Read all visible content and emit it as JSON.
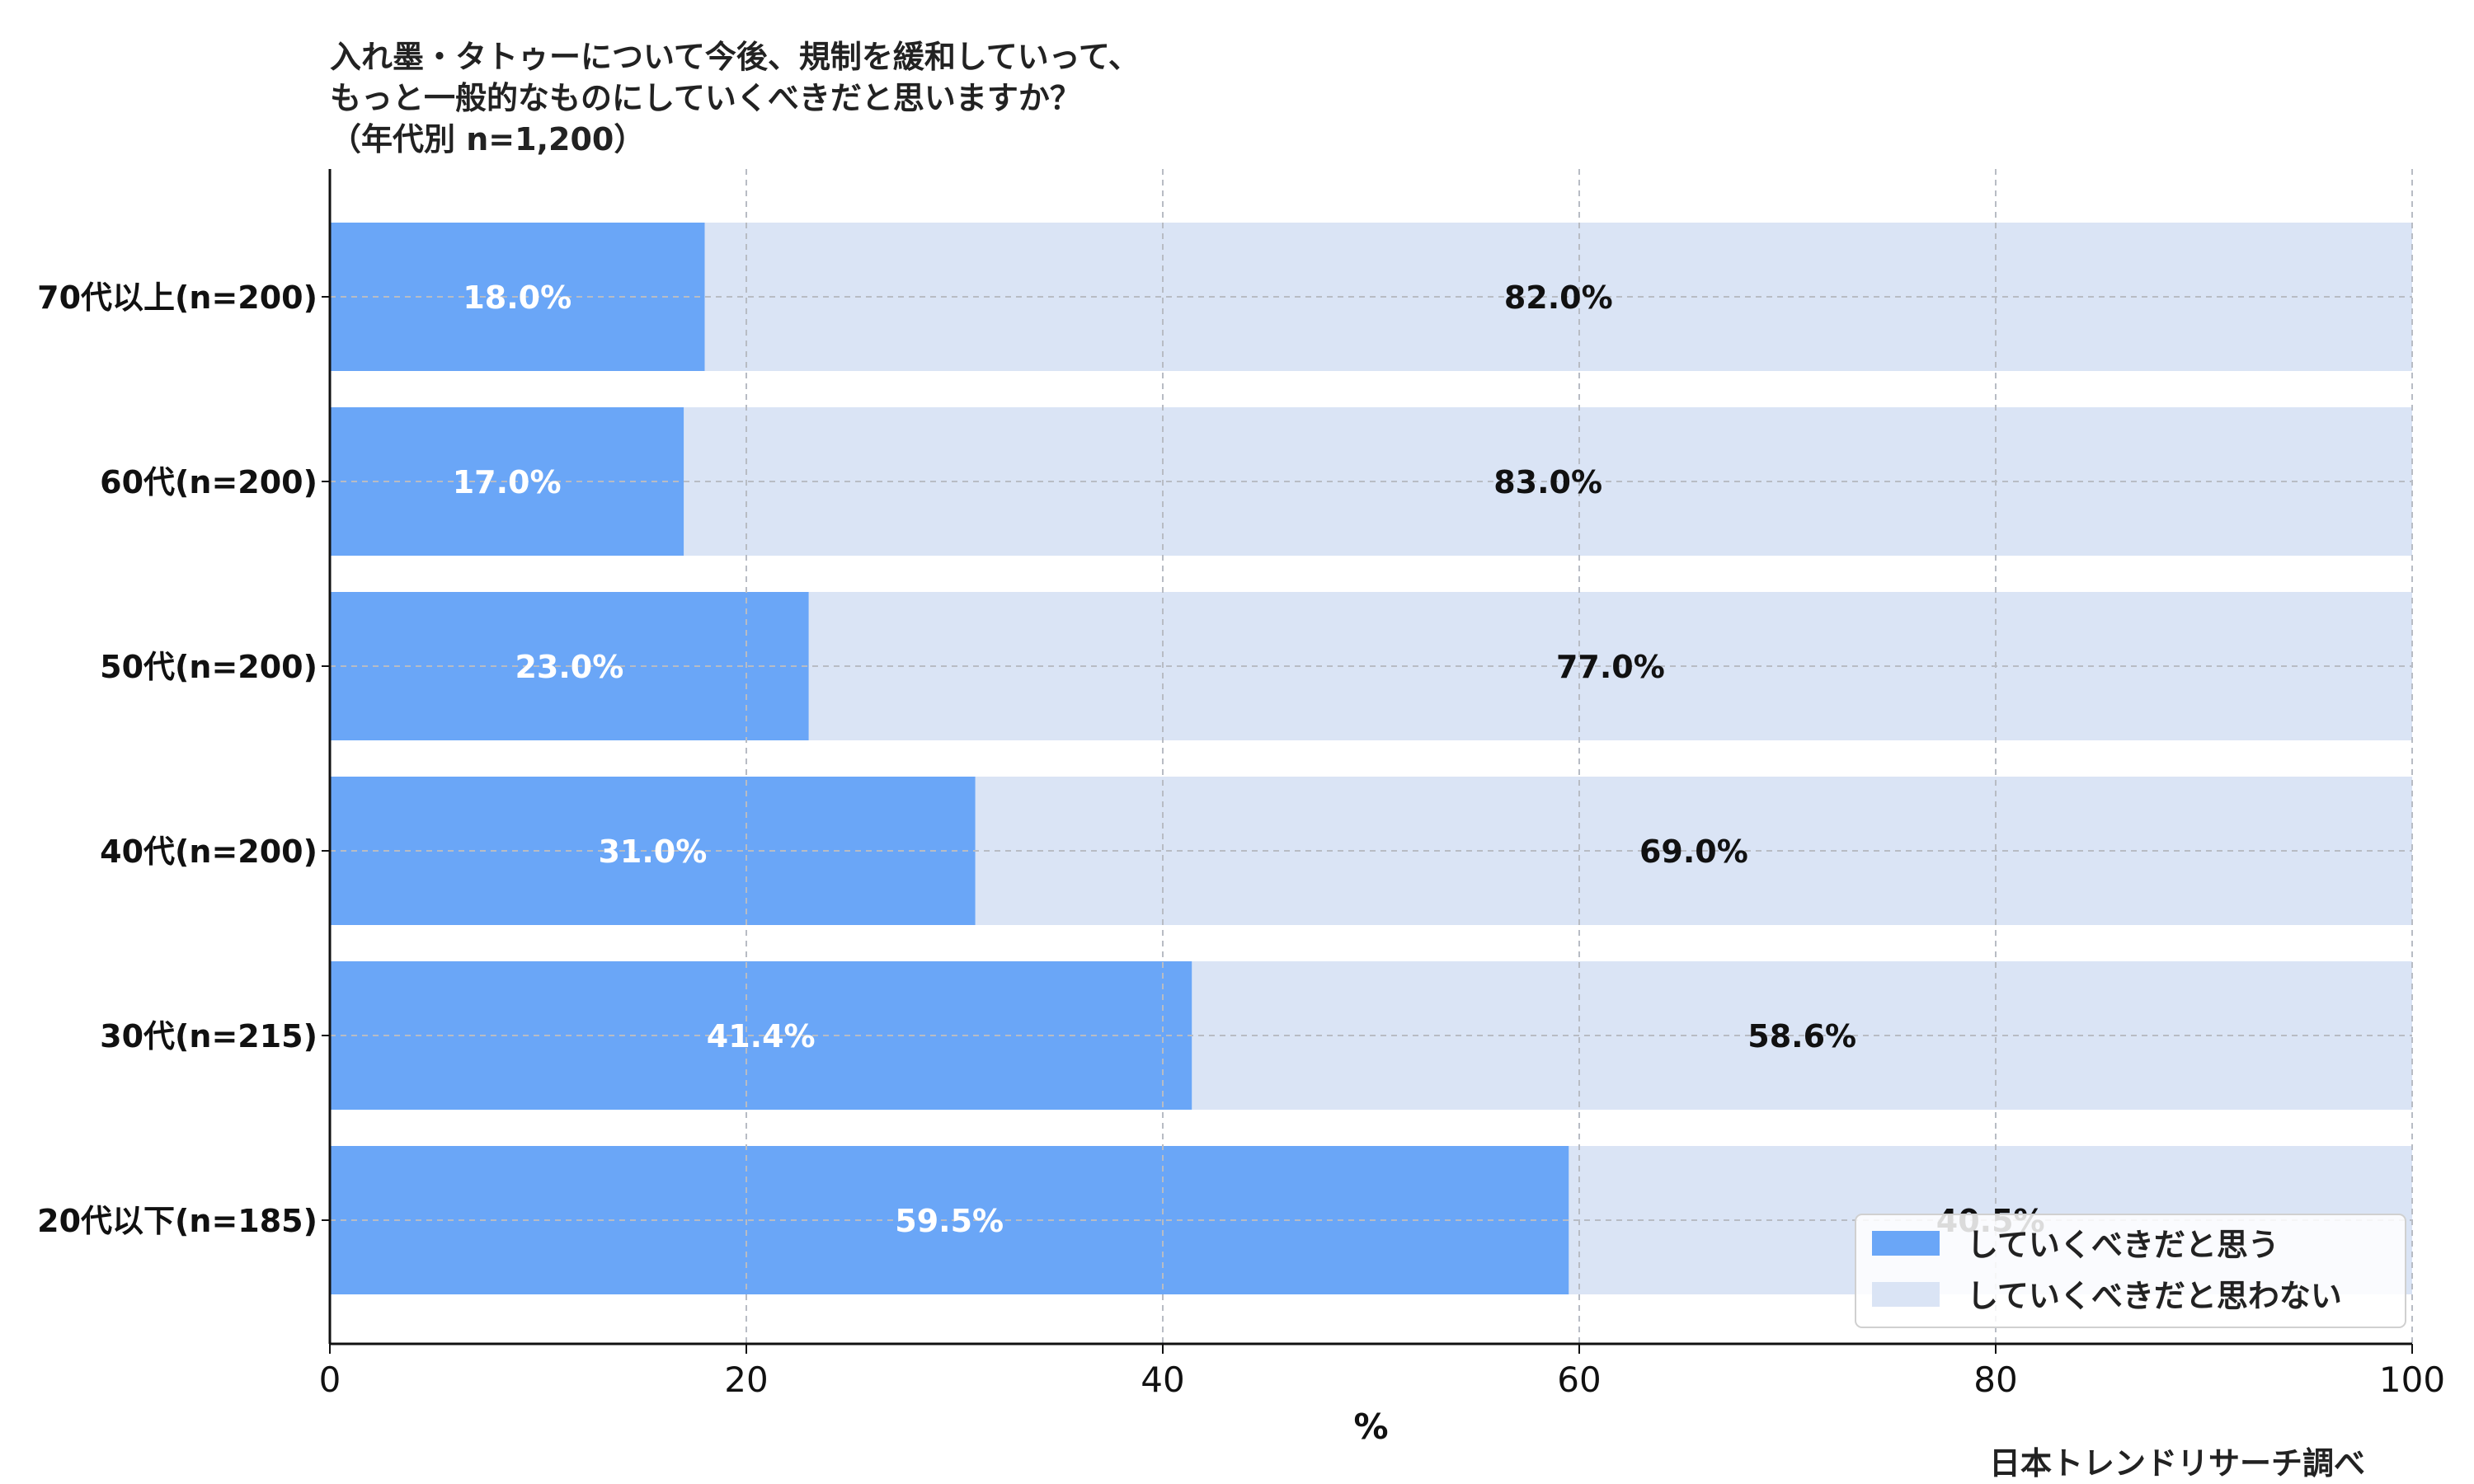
{
  "chart_data": {
    "type": "bar",
    "orientation": "horizontal",
    "stacked": true,
    "title_lines": [
      "入れ墨・タトゥーについて今後、規制を緩和していって、",
      "もっと一般的なものにしていくべきだと思いますか？",
      "（年代別 n=1,200）"
    ],
    "xlabel": "%",
    "ylabel": "",
    "xlim": [
      0,
      100
    ],
    "x_ticks": [
      "0",
      "20",
      "40",
      "60",
      "80",
      "100"
    ],
    "grid": true,
    "legend_position": "bottom-right",
    "categories": [
      "70代以上(n=200)",
      "60代(n=200)",
      "50代(n=200)",
      "40代(n=200)",
      "30代(n=215)",
      "20代以下(n=185)"
    ],
    "series": [
      {
        "name": "していくべきだと思う",
        "color": "#6aa6f7",
        "values": [
          18.0,
          17.0,
          23.0,
          31.0,
          41.4,
          59.5
        ],
        "labels": [
          "18.0%",
          "17.0%",
          "23.0%",
          "31.0%",
          "41.4%",
          "59.5%"
        ]
      },
      {
        "name": "していくべきだと思わない",
        "color": "#dae4f5",
        "values": [
          82.0,
          83.0,
          77.0,
          69.0,
          58.6,
          40.5
        ],
        "labels": [
          "82.0%",
          "83.0%",
          "77.0%",
          "69.0%",
          "58.6%",
          "40.5%"
        ]
      }
    ]
  },
  "footer": {
    "credit": "日本トレンドリサーチ調べ"
  }
}
